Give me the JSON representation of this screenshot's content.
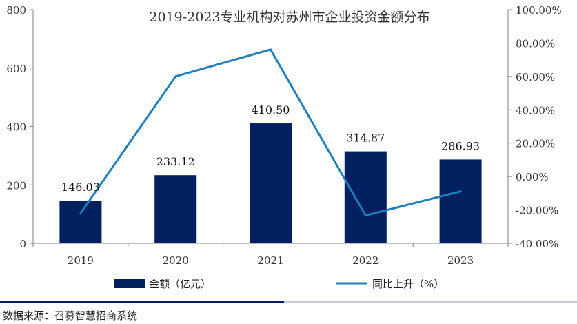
{
  "chart_data": {
    "type": "bar+line",
    "title": "2019-2023专业机构对苏州市企业投资金额分布",
    "categories": [
      "2019",
      "2020",
      "2021",
      "2022",
      "2023"
    ],
    "series": [
      {
        "name": "金额（亿元）",
        "kind": "bar",
        "axis": "left",
        "color": "#002060",
        "values": [
          146.03,
          233.12,
          410.5,
          314.87,
          286.93
        ],
        "labels": [
          "146.03",
          "233.12",
          "410.50",
          "314.87",
          "286.93"
        ]
      },
      {
        "name": "同比上升（%）",
        "kind": "line",
        "axis": "right",
        "color": "#1f7fba",
        "values": [
          -22,
          60,
          76.1,
          -23.3,
          -8.9
        ]
      }
    ],
    "y_left": {
      "min": 0,
      "max": 800,
      "ticks": [
        "0",
        "200",
        "400",
        "600",
        "800"
      ]
    },
    "y_right": {
      "min": -40,
      "max": 100,
      "ticks": [
        "-40.00%",
        "-20.00%",
        "0.00%",
        "20.00%",
        "40.00%",
        "60.00%",
        "80.00%",
        "100.00%"
      ]
    },
    "grid": false,
    "legend": "bottom"
  },
  "footer": {
    "source": "数据来源：召募智慧招商系统"
  }
}
